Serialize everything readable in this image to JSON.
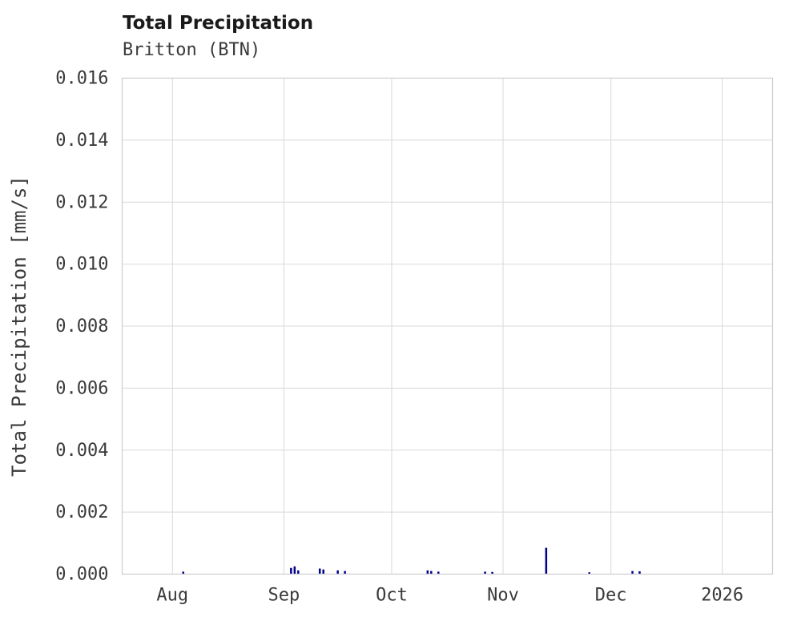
{
  "page": {
    "background_color": "#ffffff"
  },
  "chart_data": {
    "type": "bar",
    "title": "Total Precipitation",
    "subtitle": "Britton (BTN)",
    "ylabel": "Total Precipitation [mm/s]",
    "xlabel": "",
    "ylim": [
      0,
      0.016
    ],
    "grid": true,
    "legend": false,
    "bar_color": "#00008b",
    "grid_color": "#d9d9d9",
    "border_color": "#cccccc",
    "axis_text_color": "#3a3a3a",
    "yticks": [
      {
        "value": 0.0,
        "label": "0.000"
      },
      {
        "value": 0.002,
        "label": "0.002"
      },
      {
        "value": 0.004,
        "label": "0.004"
      },
      {
        "value": 0.006,
        "label": "0.006"
      },
      {
        "value": 0.008,
        "label": "0.008"
      },
      {
        "value": 0.01,
        "label": "0.010"
      },
      {
        "value": 0.012,
        "label": "0.012"
      },
      {
        "value": 0.014,
        "label": "0.014"
      },
      {
        "value": 0.016,
        "label": "0.016"
      }
    ],
    "x_domain": {
      "start": "2025-07-18",
      "end": "2026-01-15",
      "days": 181
    },
    "xticks": [
      {
        "label": "Aug",
        "day": 14
      },
      {
        "label": "Sep",
        "day": 45
      },
      {
        "label": "Oct",
        "day": 75
      },
      {
        "label": "Nov",
        "day": 106
      },
      {
        "label": "Dec",
        "day": 136
      },
      {
        "label": "2026",
        "day": 167
      }
    ],
    "series": [
      {
        "date": "2025-08-04",
        "day": 17,
        "value": 8e-05
      },
      {
        "date": "2025-09-03",
        "day": 47,
        "value": 0.0002
      },
      {
        "date": "2025-09-04",
        "day": 48,
        "value": 0.00025
      },
      {
        "date": "2025-09-05",
        "day": 49,
        "value": 0.00012
      },
      {
        "date": "2025-09-11",
        "day": 55,
        "value": 0.00018
      },
      {
        "date": "2025-09-12",
        "day": 56,
        "value": 0.00015
      },
      {
        "date": "2025-09-16",
        "day": 60,
        "value": 0.00012
      },
      {
        "date": "2025-09-18",
        "day": 62,
        "value": 0.0001
      },
      {
        "date": "2025-10-11",
        "day": 85,
        "value": 0.00012
      },
      {
        "date": "2025-10-12",
        "day": 86,
        "value": 0.0001
      },
      {
        "date": "2025-10-14",
        "day": 88,
        "value": 8e-05
      },
      {
        "date": "2025-10-27",
        "day": 101,
        "value": 8e-05
      },
      {
        "date": "2025-10-29",
        "day": 103,
        "value": 7e-05
      },
      {
        "date": "2025-11-13",
        "day": 118,
        "value": 0.00085
      },
      {
        "date": "2025-11-25",
        "day": 130,
        "value": 6e-05
      },
      {
        "date": "2025-12-07",
        "day": 142,
        "value": 0.0001
      },
      {
        "date": "2025-12-09",
        "day": 144,
        "value": 9e-05
      }
    ]
  }
}
